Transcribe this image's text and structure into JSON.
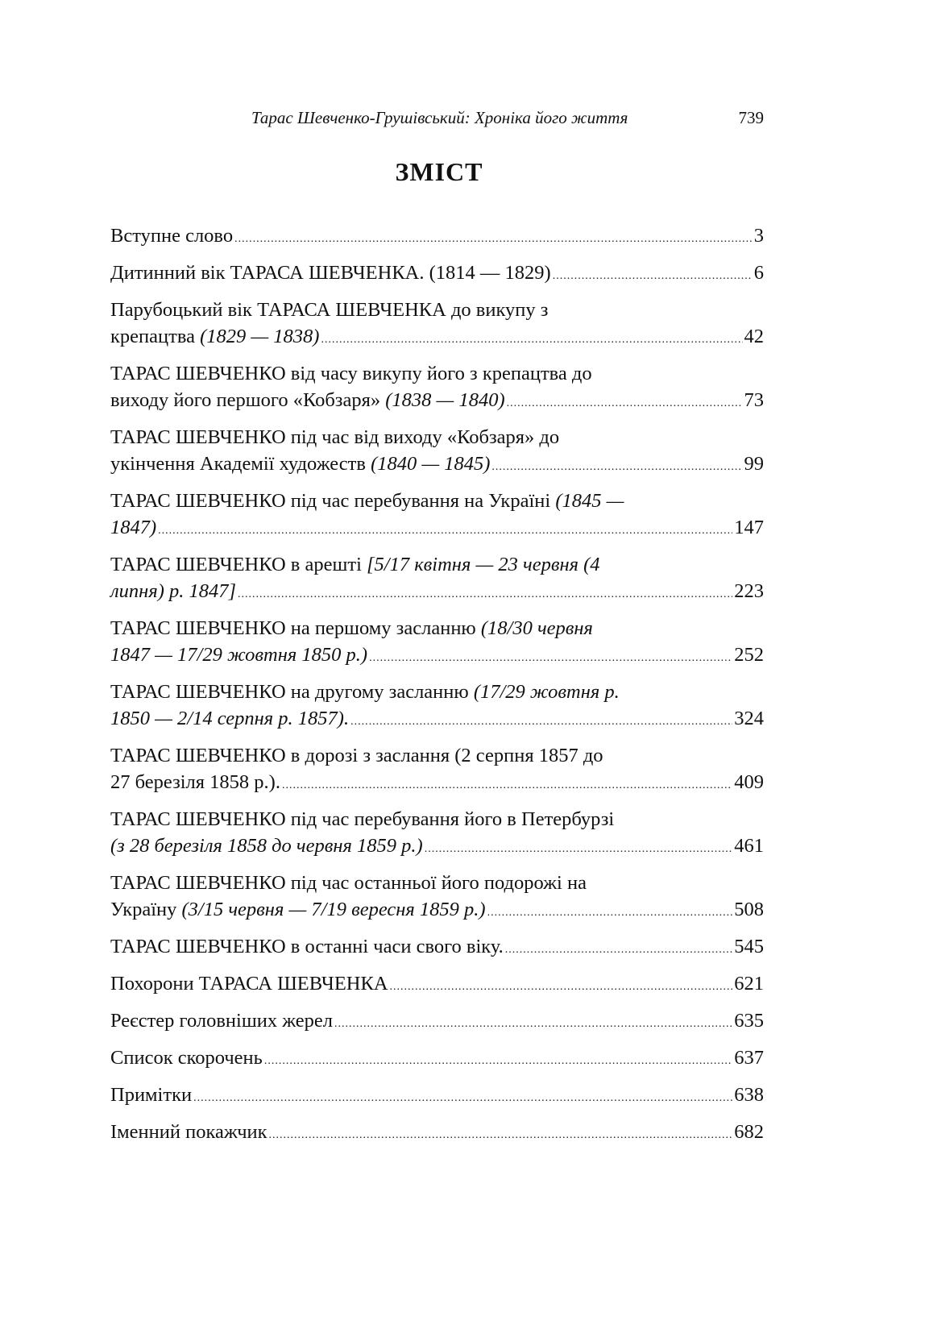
{
  "header": {
    "running_title": "Тарас Шевченко-Грушівський: Хроніка його життя",
    "page_number": "739"
  },
  "title": "ЗМІСТ",
  "entries": [
    {
      "l1": "",
      "l1i": "",
      "l2": "Вступне слово",
      "l2i": "",
      "page": "3"
    },
    {
      "l1": "",
      "l1i": "",
      "l2": "Дитинний вік ТАРАСА ШЕВЧЕНКА.  (1814 — 1829)",
      "l2i": "",
      "page": "6"
    },
    {
      "l1": "Парубоцький вік ТАРАСА ШЕВЧЕНКА  до викупу з",
      "l1i": "",
      "l2": "крепацтва ",
      "l2i": "(1829 — 1838)",
      "page": "42"
    },
    {
      "l1": "ТАРАС ШЕВЧЕНКО від часу викупу його з крепацтва до",
      "l1i": "",
      "l2": "виходу його першого «Кобзаря» ",
      "l2i": "(1838 — 1840)",
      "page": "73"
    },
    {
      "l1": "ТАРАС ШЕВЧЕНКО під час від виходу «Кобзаря» до",
      "l1i": "",
      "l2": "укінчення Академії художеств ",
      "l2i": "(1840 — 1845)",
      "page": "99"
    },
    {
      "l1": "ТАРАС ШЕВЧЕНКО під час перебування на Україні ",
      "l1i": "(1845 —",
      "l2": "",
      "l2i": "1847)",
      "page": "147"
    },
    {
      "l1": "ТАРАС ШЕВЧЕНКО в арешті ",
      "l1i": "[5/17 квітня — 23 червня (4",
      "l2": "",
      "l2i": "липня) р. 1847]",
      "page": "223"
    },
    {
      "l1": "ТАРАС ШЕВЧЕНКО на першому засланню ",
      "l1i": "(18/30 червня",
      "l2": "",
      "l2i": "1847 — 17/29 жовтня 1850 р.)",
      "page": "252"
    },
    {
      "l1": "ТАРАС ШЕВЧЕНКО на другому засланню ",
      "l1i": "(17/29 жовтня р.",
      "l2": "",
      "l2i": "1850 — 2/14 серпня р. 1857).",
      "page": "324"
    },
    {
      "l1": "ТАРАС ШЕВЧЕНКО в дорозі з заслання (2 серпня 1857 до",
      "l1i": "",
      "l2": "27 березіля 1858 р.).",
      "l2i": "",
      "page": "409"
    },
    {
      "l1": "ТАРАС ШЕВЧЕНКО під час перебування його в Петербурзі",
      "l1i": "",
      "l2": "",
      "l2i": "(з 28 березіля 1858 до червня 1859 р.)",
      "page": "461"
    },
    {
      "l1": "ТАРАС ШЕВЧЕНКО під час останньої його подорожі на",
      "l1i": "",
      "l2": "Україну ",
      "l2i": "(3/15 червня — 7/19 вересня 1859 р.)",
      "page": "508"
    },
    {
      "l1": "",
      "l1i": "",
      "l2": "ТАРАС ШЕВЧЕНКО в останні часи свого віку.",
      "l2i": "",
      "page": "545"
    },
    {
      "l1": "",
      "l1i": "",
      "l2": "Похорони ТАРАСА ШЕВЧЕНКА",
      "l2i": "",
      "page": "621"
    },
    {
      "l1": "",
      "l1i": "",
      "l2": "Реєстер головніших жерел",
      "l2i": "",
      "page": "635"
    },
    {
      "l1": "",
      "l1i": "",
      "l2": "Список скорочень",
      "l2i": "",
      "page": "637"
    },
    {
      "l1": "",
      "l1i": "",
      "l2": "Примітки",
      "l2i": "",
      "page": "638"
    },
    {
      "l1": "",
      "l1i": "",
      "l2": "Іменний покажчик",
      "l2i": "",
      "page": "682"
    }
  ]
}
